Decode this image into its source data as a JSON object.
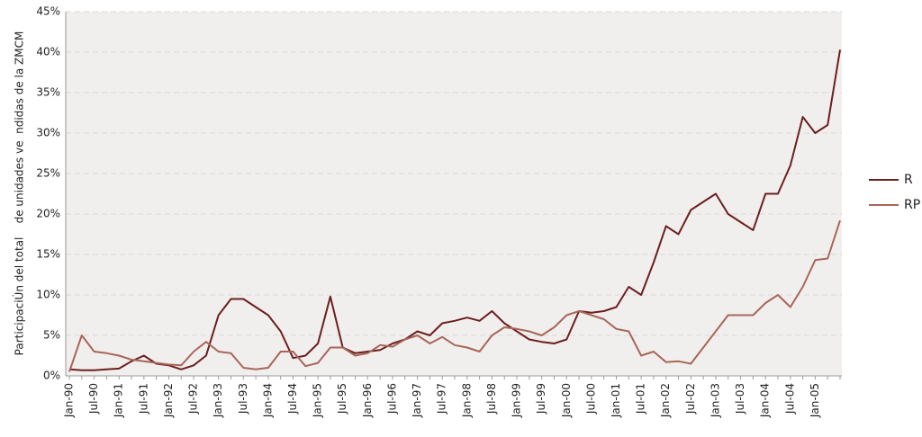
{
  "chart_data": {
    "type": "line",
    "ylabel": "ParticipaciÚn del total    de unidades ve  ndidas de la ZMCM",
    "categories": [
      "Jan-90",
      null,
      "Jul-90",
      null,
      "Jan-91",
      null,
      "Jul-91",
      null,
      "Jan-92",
      null,
      "Jul-92",
      null,
      "Jan-93",
      null,
      "Jul-93",
      null,
      "Jan-94",
      null,
      "Jul-94",
      null,
      "Jan-95",
      null,
      "Jul-95",
      null,
      "Jan-96",
      null,
      "Jul-96",
      null,
      "Jan-97",
      null,
      "Jul-97",
      null,
      "Jan-98",
      null,
      "Jul-98",
      null,
      "Jan-99",
      null,
      "Jul-99",
      null,
      "Jan-00",
      null,
      "Jul-00",
      null,
      "Jan-01",
      null,
      "Jul-01",
      null,
      "Jan-02",
      null,
      "Jul-02",
      null,
      "Jan-03",
      null,
      "Jul-03",
      null,
      "Jan-04",
      null,
      "Jul-04",
      null,
      "Jan-05",
      null,
      null
    ],
    "series": [
      {
        "name": "R",
        "color": "#6b1f1f",
        "values": [
          0.8,
          0.7,
          0.7,
          0.8,
          0.9,
          1.8,
          2.5,
          1.5,
          1.3,
          0.8,
          1.3,
          2.5,
          7.5,
          9.5,
          9.5,
          8.5,
          7.5,
          5.5,
          2.2,
          2.5,
          4.0,
          9.8,
          3.5,
          2.8,
          3.0,
          3.2,
          4.0,
          4.5,
          5.5,
          5.0,
          6.5,
          6.8,
          7.2,
          6.8,
          8.0,
          6.5,
          5.5,
          4.5,
          4.2,
          4.0,
          4.5,
          8.0,
          7.8,
          8.0,
          8.5,
          11.0,
          10.0,
          14.0,
          18.5,
          17.5,
          20.5,
          21.5,
          22.5,
          20.0,
          19.0,
          18.0,
          22.5,
          22.5,
          26.0,
          32.0,
          30.0,
          31.0,
          40.3
        ]
      },
      {
        "name": "RP",
        "color": "#a8665a",
        "values": [
          0.5,
          5.0,
          3.0,
          2.8,
          2.5,
          2.0,
          1.8,
          1.6,
          1.4,
          1.3,
          3.0,
          4.2,
          3.0,
          2.8,
          1.0,
          0.8,
          1.0,
          3.0,
          3.0,
          1.2,
          1.6,
          3.5,
          3.5,
          2.5,
          2.8,
          3.8,
          3.6,
          4.5,
          5.0,
          4.0,
          4.8,
          3.8,
          3.5,
          3.0,
          5.0,
          6.0,
          5.8,
          5.5,
          5.0,
          6.0,
          7.5,
          8.0,
          7.5,
          7.0,
          5.8,
          5.5,
          2.5,
          3.0,
          1.7,
          1.8,
          1.5,
          3.5,
          5.5,
          7.5,
          7.5,
          7.5,
          9.0,
          10.0,
          8.5,
          11.0,
          14.3,
          14.5,
          19.2
        ]
      }
    ],
    "ylim": [
      0,
      45
    ],
    "yticks": [
      {
        "value": 0,
        "label": "0%"
      },
      {
        "value": 5,
        "label": "5%"
      },
      {
        "value": 10,
        "label": "10%"
      },
      {
        "value": 15,
        "label": "15%"
      },
      {
        "value": 20,
        "label": "20%"
      },
      {
        "value": 25,
        "label": "25%"
      },
      {
        "value": 30,
        "label": "30%"
      },
      {
        "value": 35,
        "label": "35%"
      },
      {
        "value": 40,
        "label": "40%"
      },
      {
        "value": 45,
        "label": "45%"
      }
    ],
    "grid": true
  }
}
